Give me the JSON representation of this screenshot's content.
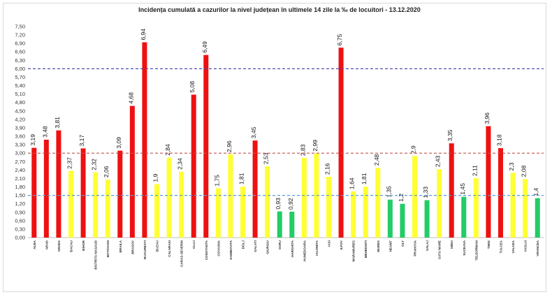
{
  "chart_data": {
    "type": "bar",
    "title": "Incidența cumulată a cazurilor la nivel județean în ultimele 14 zile    la ‰ de locuitori  - 13.12.2020",
    "xlabel": "",
    "ylabel": "",
    "ylim": [
      0,
      7.5
    ],
    "ytick_step": 0.3,
    "grid": false,
    "legend": "none",
    "categories": [
      "ALBA",
      "ARAD",
      "ARGES",
      "BACAU",
      "BIHOR",
      "BISTRITA NASAUD",
      "BOTOSANI",
      "BRAILA",
      "BRASOV",
      "BUCURESTI",
      "BUZAU",
      "CALARASI",
      "CARAS-SEVERIN",
      "CLUJ",
      "CONSTANTA",
      "COVASNA",
      "DAMBOVITA",
      "DOLJ",
      "GALATI",
      "GIURGIU",
      "GORJ",
      "HARGHITA",
      "HUNEDOARA",
      "IALOMITA",
      "IASI",
      "ILFOV",
      "MARAMURES",
      "MEHEDINTI",
      "MURES",
      "NEAMT",
      "OLT",
      "PRAHOVA",
      "SALAJ",
      "SATU MARE",
      "SIBIU",
      "SUCEAVA",
      "TELEORMAN",
      "TIMIS",
      "TULCEA",
      "VALCEA",
      "VASLUI",
      "VRANCEA"
    ],
    "values": [
      3.19,
      3.48,
      3.81,
      2.37,
      3.17,
      2.32,
      2.06,
      3.09,
      4.68,
      6.94,
      1.9,
      2.84,
      2.34,
      5.08,
      6.49,
      1.75,
      2.96,
      1.81,
      3.45,
      2.53,
      0.93,
      0.92,
      2.83,
      2.99,
      2.16,
      6.75,
      1.64,
      1.81,
      2.48,
      1.35,
      1.2,
      2.9,
      1.33,
      2.43,
      3.35,
      1.45,
      2.11,
      3.96,
      3.18,
      2.3,
      2.08,
      1.4
    ],
    "labels": [
      "3,19",
      "3,48",
      "3,81",
      "2,37",
      "3,17",
      "2,32",
      "2,06",
      "3,09",
      "4,68",
      "6,94",
      "1,9",
      "2,84",
      "2,34",
      "5,08",
      "6,49",
      "1,75",
      "2,96",
      "1,81",
      "3,45",
      "2,53",
      "0,93",
      "0,92",
      "2,83",
      "2,99",
      "2,16",
      "6,75",
      "1,64",
      "1,81",
      "2,48",
      "1,35",
      "1,2",
      "2,9",
      "1,33",
      "2,43",
      "3,35",
      "1,45",
      "2,11",
      "3,96",
      "3,18",
      "2,3",
      "2,08",
      "1,4"
    ],
    "thresholds": [
      {
        "value": 1.5,
        "color": "#5b9bd5"
      },
      {
        "value": 3.0,
        "color": "#c0504d"
      },
      {
        "value": 6.0,
        "color": "#4b4bb0"
      }
    ],
    "colors": {
      "high": "#ee1111",
      "mid": "#ffff33",
      "low": "#22cc66"
    }
  }
}
